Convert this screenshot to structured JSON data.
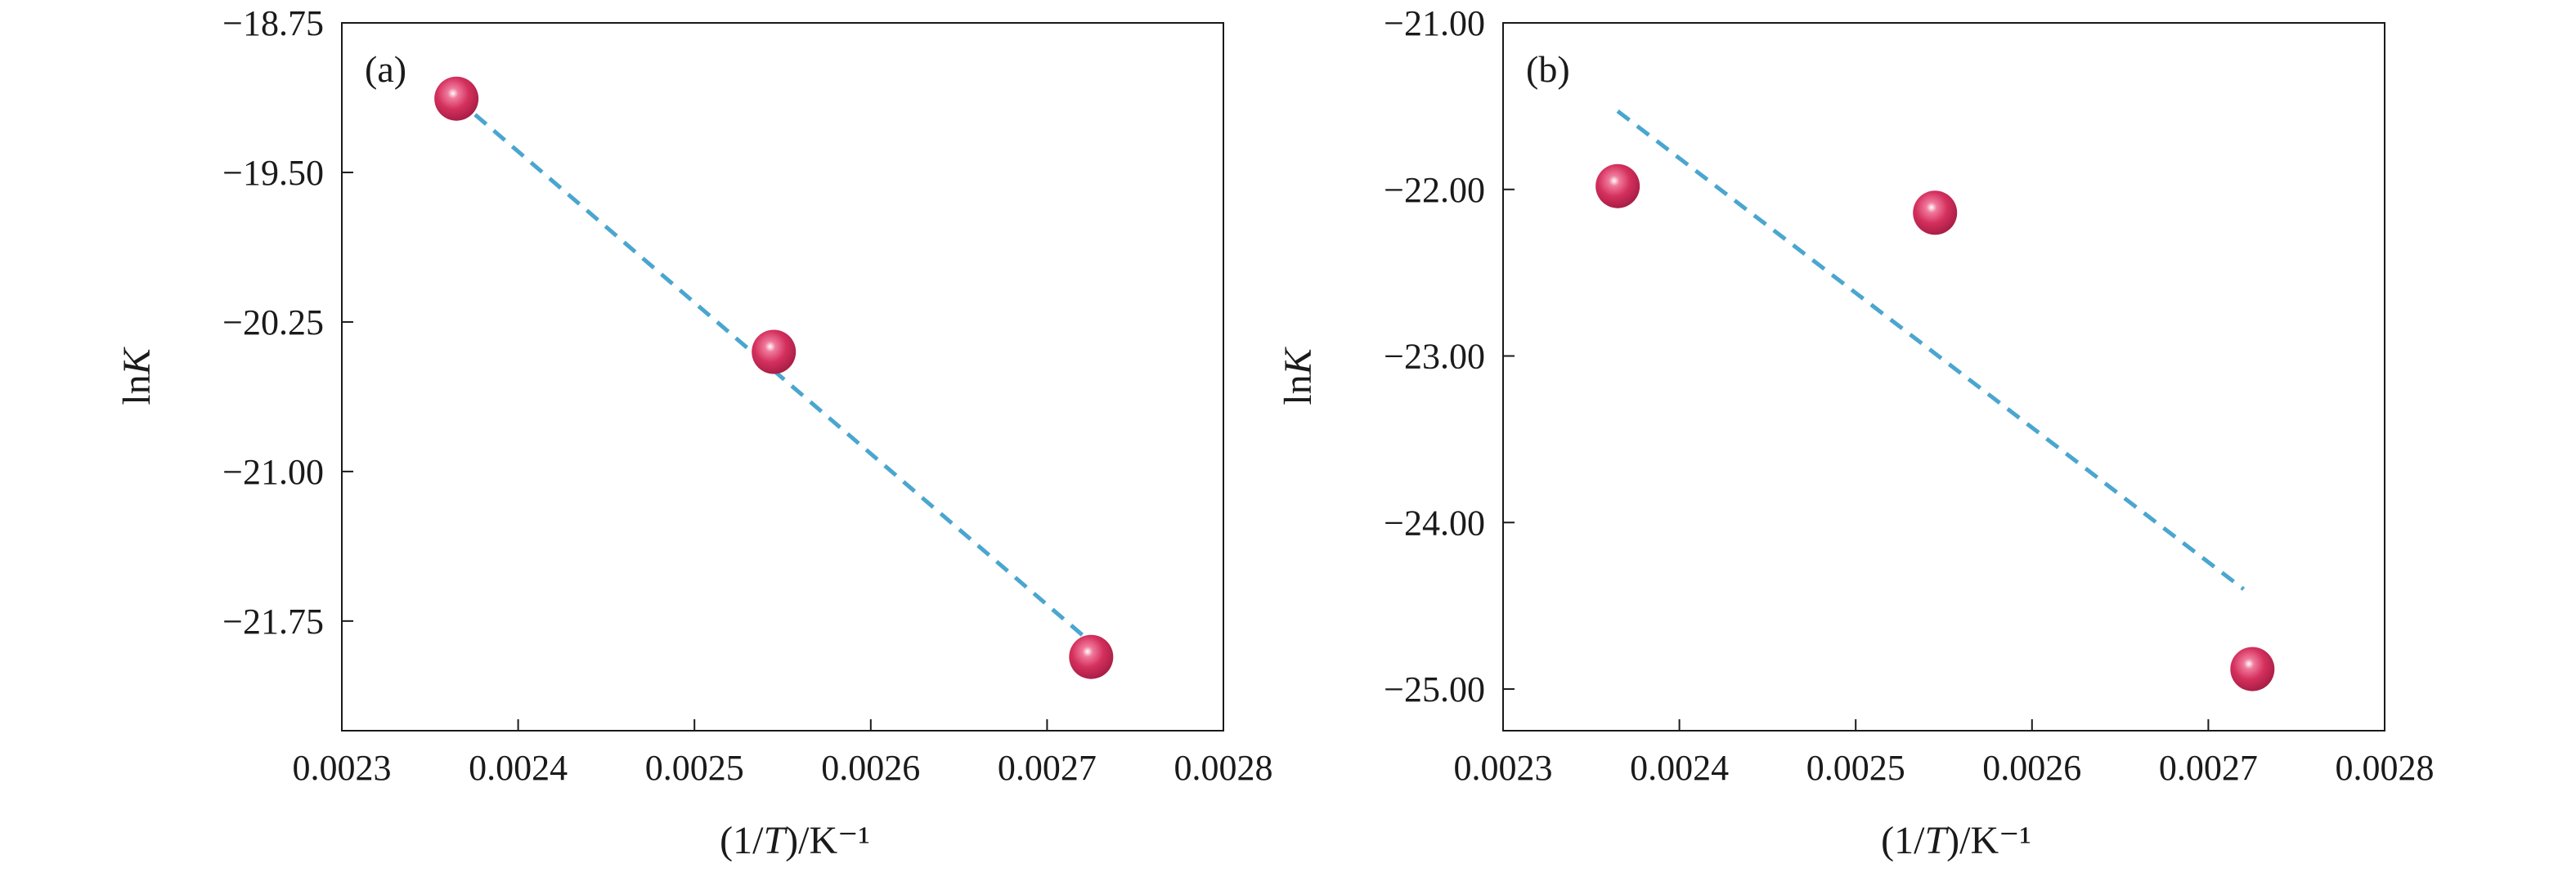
{
  "colors": {
    "point": "#cc2a55",
    "point_highlight": "#ffffff",
    "fit_line": "#4aa6cf",
    "axis": "#1a1a1a",
    "background": "#ffffff"
  },
  "chart_data": [
    {
      "panel_label": "(a)",
      "type": "scatter",
      "xlabel": "(1/T)/K⁻¹",
      "ylabel": "lnK",
      "xlim": [
        0.0023,
        0.0028
      ],
      "ylim": [
        -22.3,
        -18.75
      ],
      "x_ticks": [
        0.0023,
        0.0024,
        0.0025,
        0.0026,
        0.0027,
        0.0028
      ],
      "x_tick_labels": [
        "0.0023",
        "0.0024",
        "0.0025",
        "0.0026",
        "0.0027",
        "0.0028"
      ],
      "y_ticks": [
        -18.75,
        -19.5,
        -20.25,
        -21.0,
        -21.75
      ],
      "y_tick_labels": [
        "−18.75",
        "−19.50",
        "−20.25",
        "−21.00",
        "−21.75"
      ],
      "points": [
        {
          "x": 0.002365,
          "y": -19.13
        },
        {
          "x": 0.002545,
          "y": -20.4
        },
        {
          "x": 0.002725,
          "y": -21.93
        }
      ],
      "fit_line": {
        "style": "dashed",
        "from": {
          "x": 0.002365,
          "y": -19.13
        },
        "to": {
          "x": 0.00272,
          "y": -21.82
        }
      },
      "grid": false
    },
    {
      "panel_label": "(b)",
      "type": "scatter",
      "xlabel": "(1/T)/K⁻¹",
      "ylabel": "lnK",
      "xlim": [
        0.0023,
        0.0028
      ],
      "ylim": [
        -25.25,
        -21.0
      ],
      "x_ticks": [
        0.0023,
        0.0024,
        0.0025,
        0.0026,
        0.0027,
        0.0028
      ],
      "x_tick_labels": [
        "0.0023",
        "0.0024",
        "0.0025",
        "0.0026",
        "0.0027",
        "0.0028"
      ],
      "y_ticks": [
        -21.0,
        -22.0,
        -23.0,
        -24.0,
        -25.0
      ],
      "y_tick_labels": [
        "−21.00",
        "−22.00",
        "−23.00",
        "−24.00",
        "−25.00"
      ],
      "points": [
        {
          "x": 0.002365,
          "y": -21.98
        },
        {
          "x": 0.002545,
          "y": -22.14
        },
        {
          "x": 0.002725,
          "y": -24.88
        }
      ],
      "fit_line": {
        "style": "dashed",
        "from": {
          "x": 0.002365,
          "y": -21.53
        },
        "to": {
          "x": 0.00272,
          "y": -24.4
        }
      },
      "grid": false
    }
  ]
}
